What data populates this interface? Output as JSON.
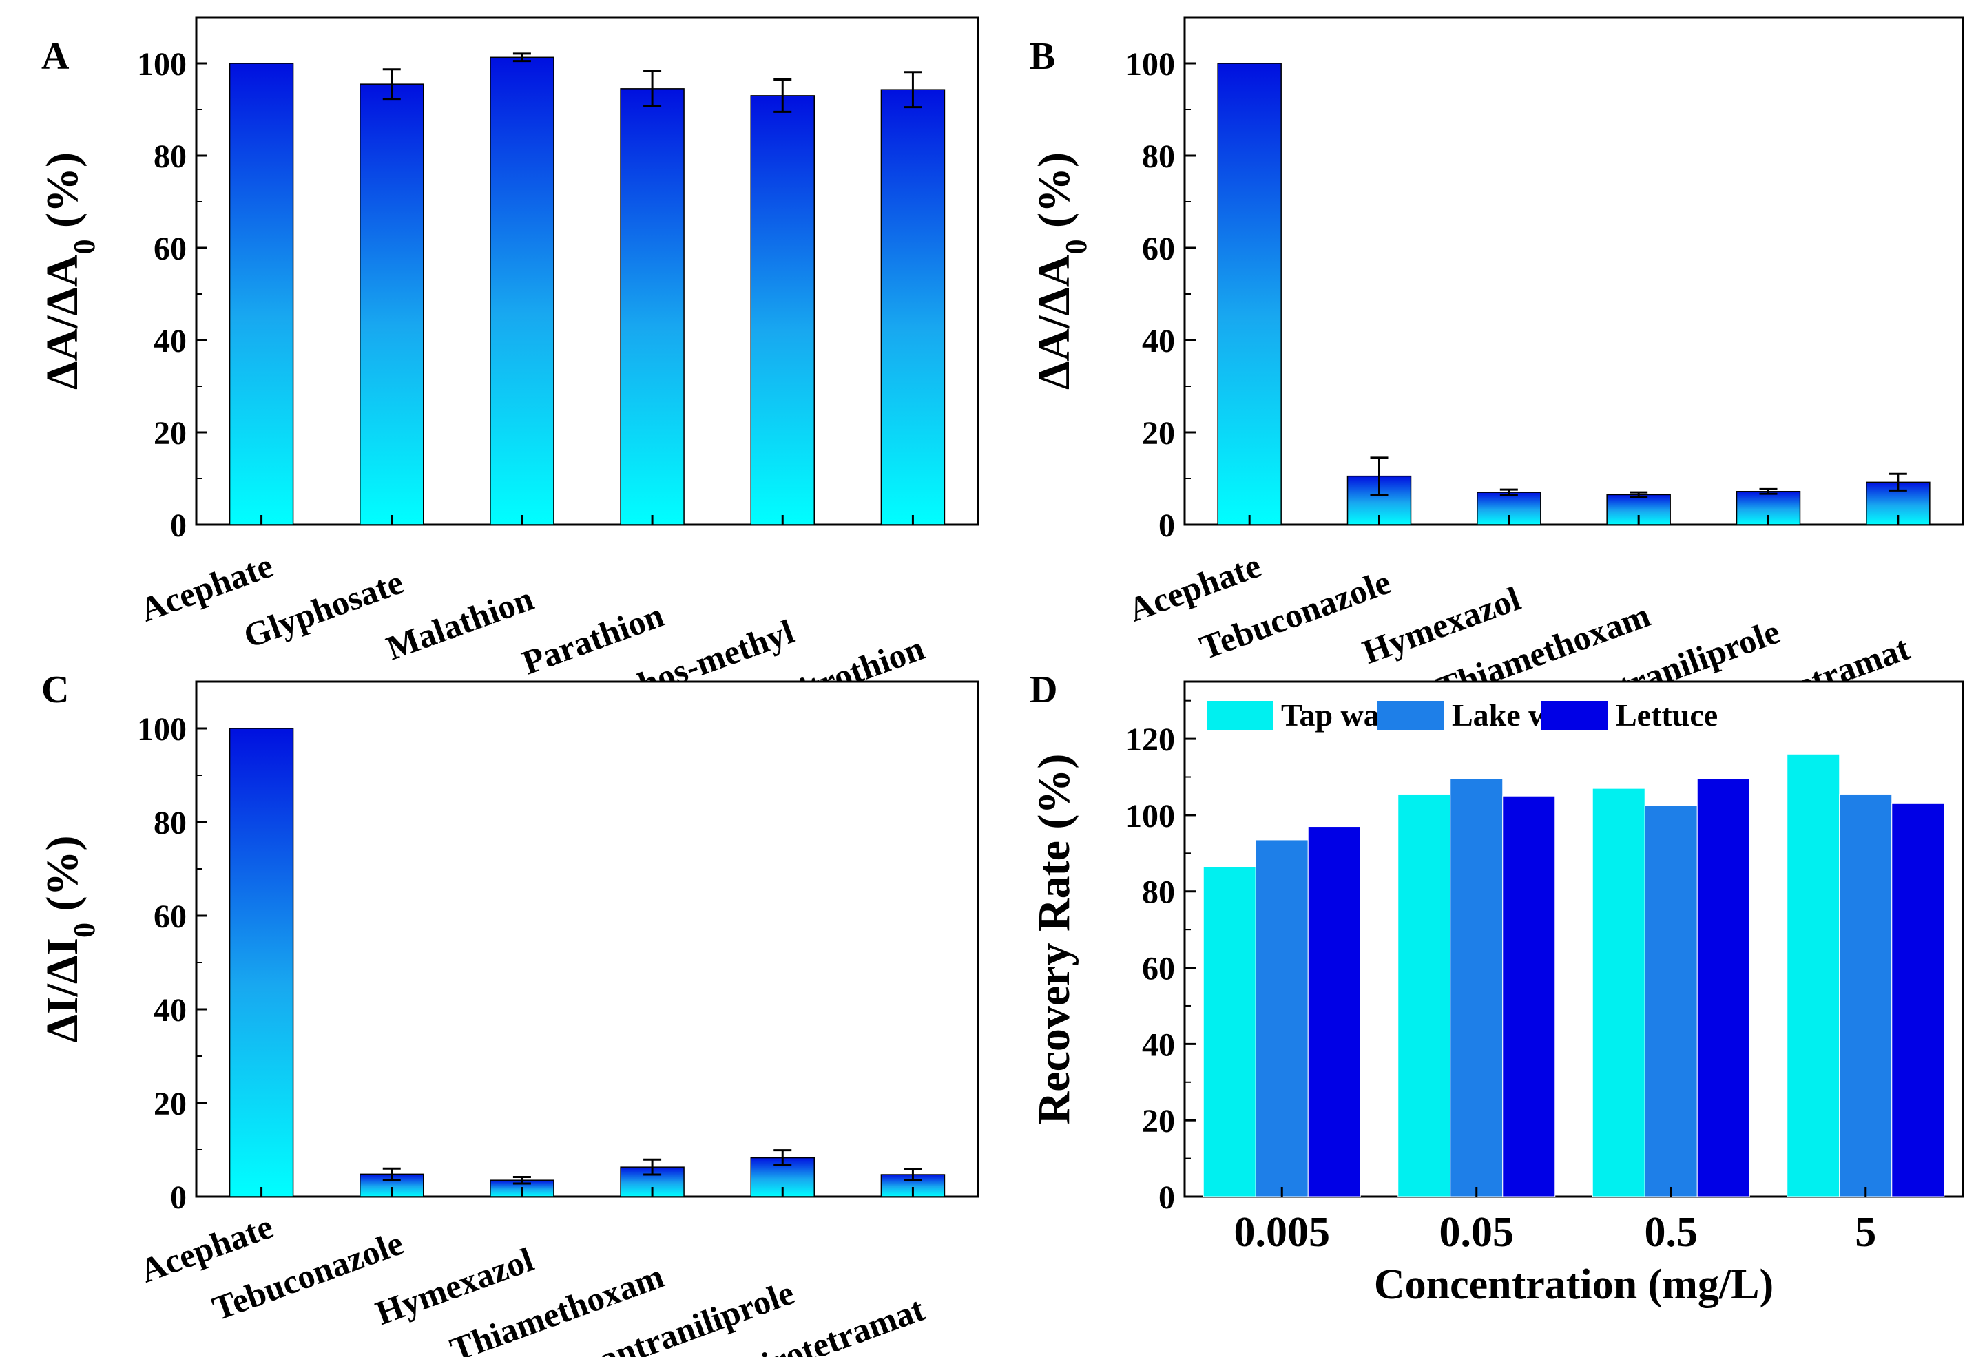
{
  "chart_data": [
    {
      "id": "A",
      "type": "bar",
      "panel_label": "A",
      "ylabel": "ΔA/ΔA",
      "ylabel_sub": "0",
      "ylabel_unit": " (%)",
      "ylim": [
        0,
        110
      ],
      "yticks": [
        0,
        20,
        40,
        60,
        80,
        100
      ],
      "categories": [
        "Acephate",
        "Glyphosate",
        "Malathion",
        "Parathion",
        "Pirimiphos-methyl",
        "Fenitrothion"
      ],
      "values": [
        100,
        95.5,
        101.3,
        94.5,
        93,
        94.3
      ],
      "errors": [
        0,
        3.2,
        0.8,
        3.8,
        3.5,
        3.8
      ]
    },
    {
      "id": "B",
      "type": "bar",
      "panel_label": "B",
      "ylabel": "ΔA/ΔA",
      "ylabel_sub": "0",
      "ylabel_unit": " (%)",
      "ylim": [
        0,
        110
      ],
      "yticks": [
        0,
        20,
        40,
        60,
        80,
        100
      ],
      "categories": [
        "Acephate",
        "Tebuconazole",
        "Hymexazol",
        "Thiamethoxam",
        "Cyantraniliprole",
        "Spirotetramat"
      ],
      "values": [
        100,
        10.5,
        7,
        6.5,
        7.2,
        9.2
      ],
      "errors": [
        0,
        4,
        0.6,
        0.5,
        0.5,
        1.8
      ]
    },
    {
      "id": "C",
      "type": "bar",
      "panel_label": "C",
      "ylabel": "ΔI/ΔI",
      "ylabel_sub": "0",
      "ylabel_unit": " (%)",
      "ylim": [
        0,
        110
      ],
      "yticks": [
        0,
        20,
        40,
        60,
        80,
        100
      ],
      "categories": [
        "Acephate",
        "Tebuconazole",
        "Hymexazol",
        "Thiamethoxam",
        "Cyantraniliprole",
        "Spirotetramat"
      ],
      "values": [
        100,
        4.8,
        3.5,
        6.3,
        8.3,
        4.7
      ],
      "errors": [
        0,
        1.2,
        0.7,
        1.6,
        1.6,
        1.2
      ]
    },
    {
      "id": "D",
      "type": "bar",
      "panel_label": "D",
      "ylabel": "Recovery Rate (%)",
      "xlabel": "Concentration (mg/L)",
      "ylim": [
        0,
        135
      ],
      "yticks": [
        0,
        20,
        40,
        60,
        80,
        100,
        120
      ],
      "categories": [
        "0.005",
        "0.05",
        "0.5",
        "5"
      ],
      "series": [
        {
          "name": "Tap water",
          "color": "#00f0f0",
          "values": [
            86.5,
            105.5,
            107,
            116
          ]
        },
        {
          "name": "Lake water",
          "color": "#1e7fe8",
          "values": [
            93.5,
            109.5,
            102.5,
            105.5
          ]
        },
        {
          "name": "Lettuce",
          "color": "#0000e6",
          "values": [
            97,
            105,
            109.5,
            103
          ]
        }
      ],
      "legend": "top"
    }
  ]
}
